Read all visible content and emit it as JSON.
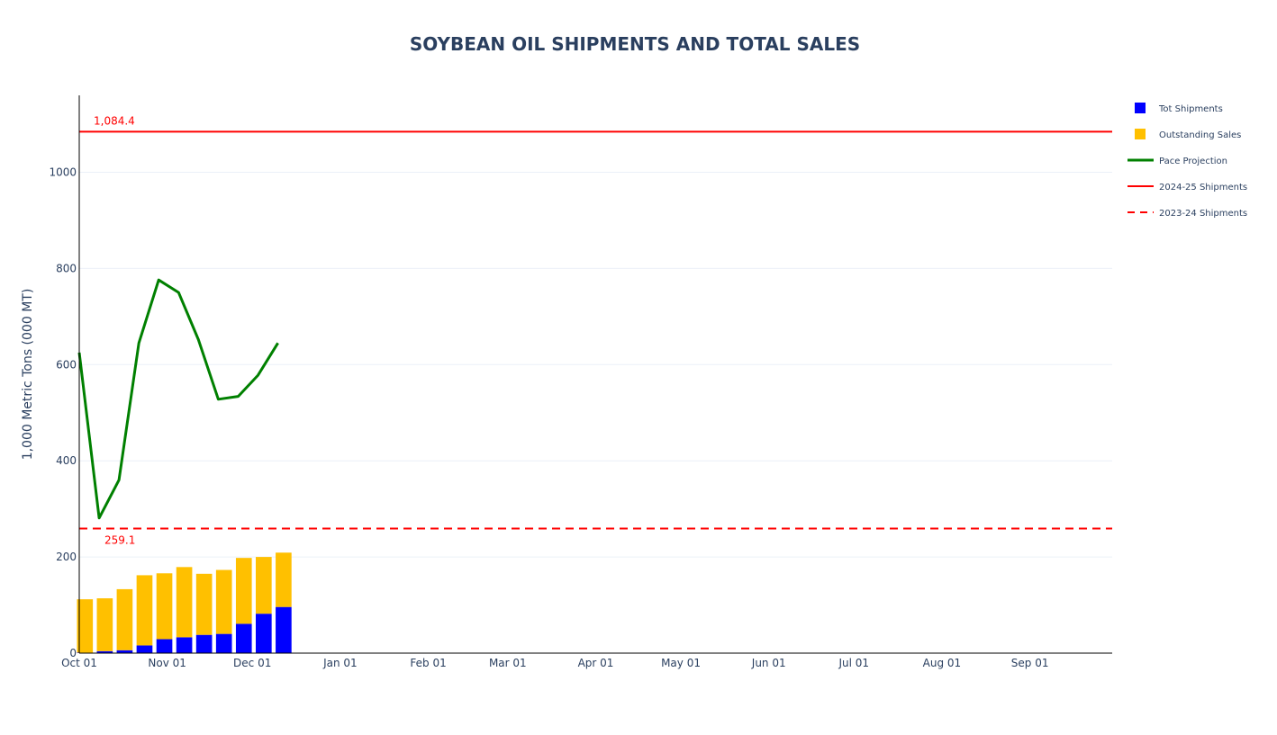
{
  "chart_data": {
    "type": "bar",
    "title": "SOYBEAN OIL SHIPMENTS AND TOTAL SALES",
    "xlabel": "",
    "ylabel": "1,000 Metric Tons (000 MT)",
    "barmode": "stack",
    "x_range": [
      "2024-10-01",
      "2025-09-30"
    ],
    "ylim": [
      0,
      1160
    ],
    "y_ticks": [
      0,
      200,
      400,
      600,
      800,
      1000
    ],
    "x_ticks": [
      {
        "date": "2024-10-01",
        "label": "Oct 01"
      },
      {
        "date": "2024-11-01",
        "label": "Nov 01"
      },
      {
        "date": "2024-12-01",
        "label": "Dec 01"
      },
      {
        "date": "2025-01-01",
        "label": "Jan 01"
      },
      {
        "date": "2025-02-01",
        "label": "Feb 01"
      },
      {
        "date": "2025-03-01",
        "label": "Mar 01"
      },
      {
        "date": "2025-04-01",
        "label": "Apr 01"
      },
      {
        "date": "2025-05-01",
        "label": "May 01"
      },
      {
        "date": "2025-06-01",
        "label": "Jun 01"
      },
      {
        "date": "2025-07-01",
        "label": "Jul 01"
      },
      {
        "date": "2025-08-01",
        "label": "Aug 01"
      },
      {
        "date": "2025-09-01",
        "label": "Sep 01"
      }
    ],
    "grid": true,
    "legend_position": "top-right",
    "categories": [
      "2024-10-03",
      "2024-10-10",
      "2024-10-17",
      "2024-10-24",
      "2024-10-31",
      "2024-11-07",
      "2024-11-14",
      "2024-11-21",
      "2024-11-28",
      "2024-12-05",
      "2024-12-12"
    ],
    "series": [
      {
        "name": "Tot Shipments",
        "kind": "bar",
        "color": "#0000ff",
        "values": [
          1,
          4,
          6,
          16,
          29,
          33,
          38,
          40,
          61,
          82,
          96
        ]
      },
      {
        "name": "Outstanding Sales",
        "kind": "bar",
        "color": "#ffc000",
        "values": [
          111,
          110,
          127,
          146,
          137,
          146,
          127,
          133,
          137,
          118,
          113
        ]
      },
      {
        "name": "Pace Projection",
        "kind": "line",
        "color": "#008000",
        "dates": [
          "2024-10-01",
          "2024-10-08",
          "2024-10-15",
          "2024-10-22",
          "2024-10-29",
          "2024-11-05",
          "2024-11-12",
          "2024-11-19",
          "2024-11-26",
          "2024-12-03",
          "2024-12-10"
        ],
        "values": [
          625,
          281,
          360,
          645,
          776,
          750,
          652,
          528,
          534,
          578,
          645
        ]
      },
      {
        "name": "2024-25 Shipments",
        "kind": "hline",
        "color": "#ff0000",
        "style": "solid",
        "value": 1084.4
      },
      {
        "name": "2023-24 Shipments",
        "kind": "hline",
        "color": "#ff0000",
        "style": "dash",
        "value": 259.1
      }
    ],
    "annotations": [
      {
        "text": "1,084.4",
        "color": "#ff0000"
      },
      {
        "text": "259.1",
        "color": "#ff0000"
      }
    ]
  }
}
